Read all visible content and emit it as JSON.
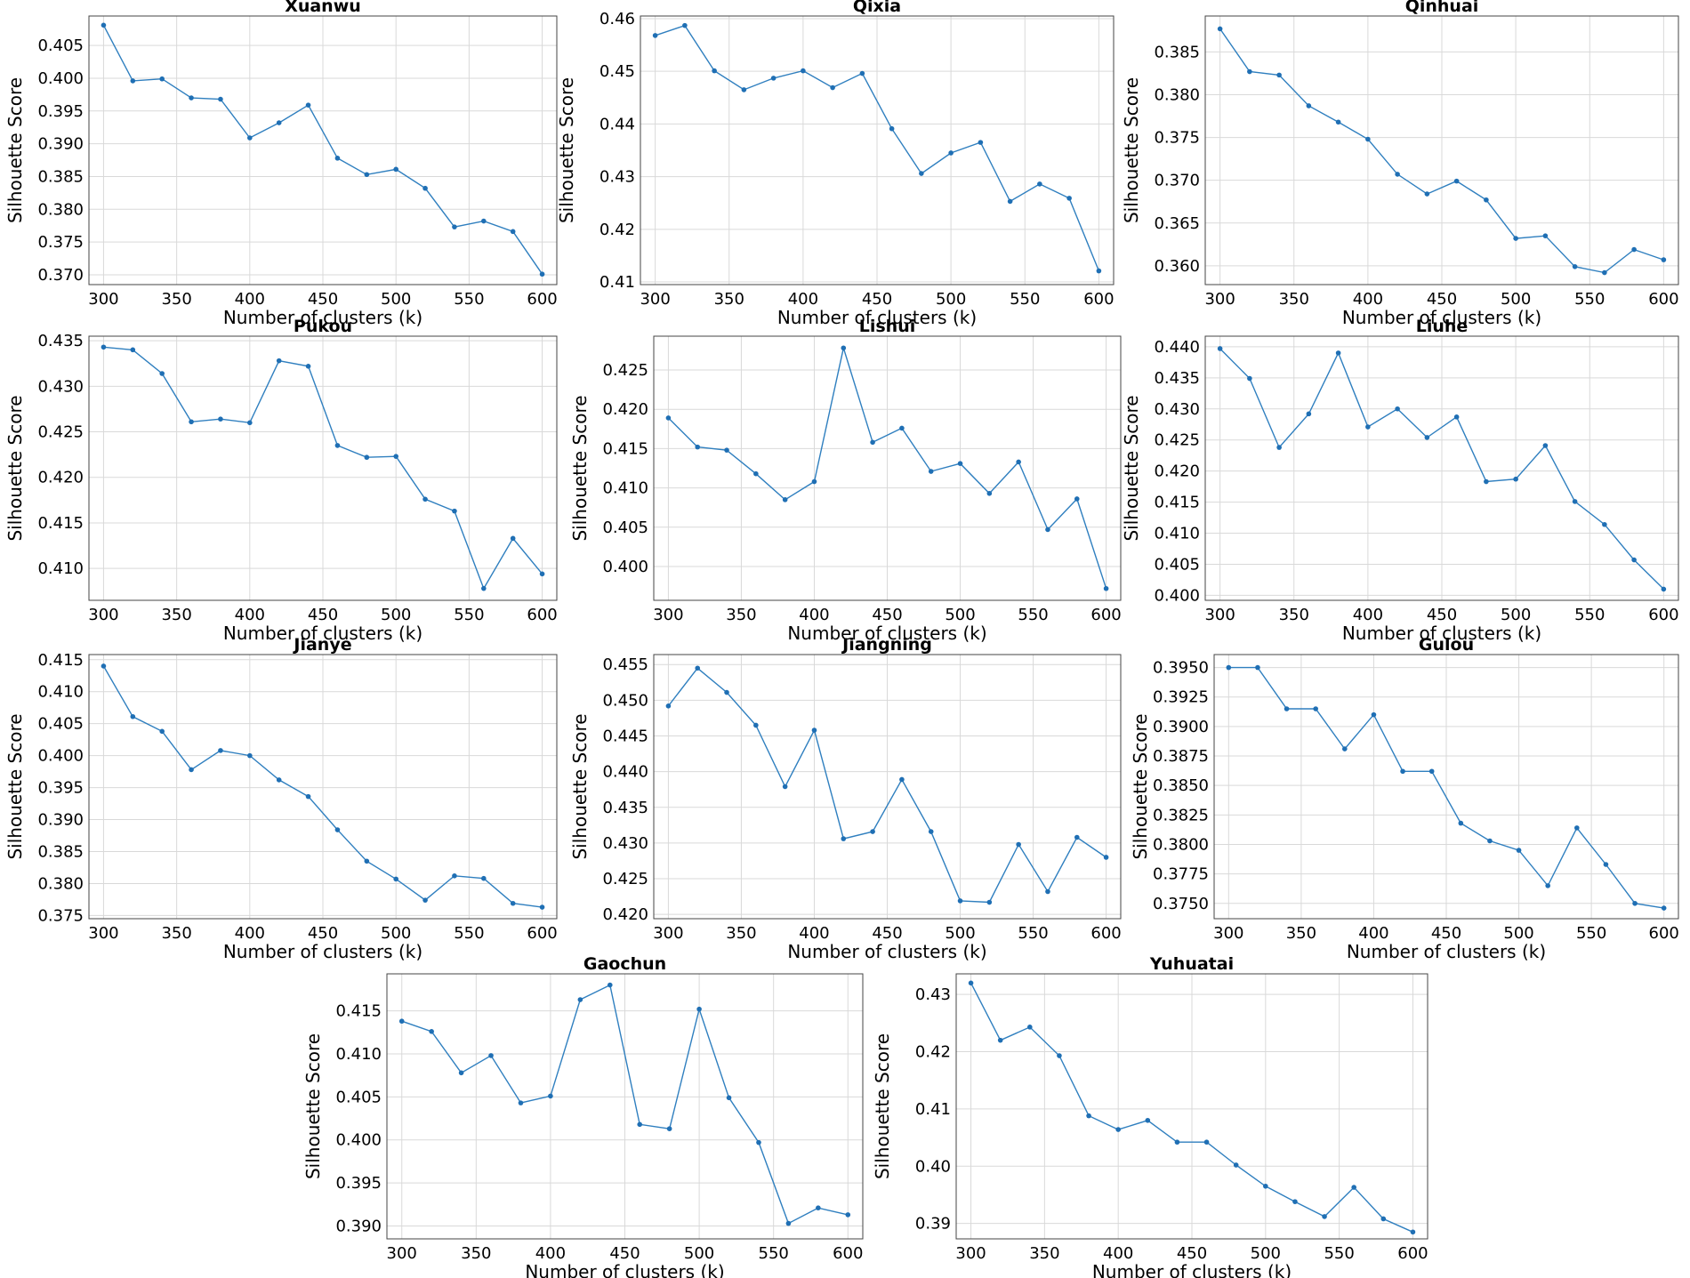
{
  "chart_data": [
    {
      "type": "line",
      "title": "Xuanwu",
      "xlabel": "Number of clusters (k)",
      "ylabel": "Silhouette Score",
      "x": [
        300,
        320,
        340,
        360,
        380,
        400,
        420,
        440,
        460,
        480,
        500,
        520,
        540,
        560,
        580,
        600
      ],
      "series": [
        {
          "values": [
            0.4081,
            0.3996,
            0.3999,
            0.397,
            0.3968,
            0.3909,
            0.3932,
            0.3959,
            0.3878,
            0.3853,
            0.3861,
            0.3832,
            0.3773,
            0.3782,
            0.3766,
            0.3701
          ]
        }
      ],
      "xticks": [
        300,
        350,
        400,
        450,
        500,
        550,
        600
      ],
      "yticks": [
        0.37,
        0.375,
        0.38,
        0.385,
        0.39,
        0.395,
        0.4,
        0.405
      ],
      "ytick_decimals": 3,
      "xlim": [
        290,
        610
      ],
      "ylim": [
        0.3685,
        0.4095
      ],
      "grid": true
    },
    {
      "type": "line",
      "title": "Qixia",
      "xlabel": "Number of clusters (k)",
      "ylabel": "Silhouette Score",
      "x": [
        300,
        320,
        340,
        360,
        380,
        400,
        420,
        440,
        460,
        480,
        500,
        520,
        540,
        560,
        580,
        600
      ],
      "series": [
        {
          "values": [
            0.4568,
            0.4587,
            0.4501,
            0.4465,
            0.4487,
            0.4501,
            0.4469,
            0.4496,
            0.4391,
            0.4306,
            0.4345,
            0.4365,
            0.4253,
            0.4286,
            0.4259,
            0.4121
          ]
        }
      ],
      "xticks": [
        300,
        350,
        400,
        450,
        500,
        550,
        600
      ],
      "yticks": [
        0.41,
        0.42,
        0.43,
        0.44,
        0.45,
        0.46
      ],
      "ytick_decimals": 2,
      "xlim": [
        290,
        610
      ],
      "ylim": [
        0.4095,
        0.4605
      ],
      "grid": true
    },
    {
      "type": "line",
      "title": "Qinhuai",
      "xlabel": "Number of clusters (k)",
      "ylabel": "Silhouette Score",
      "x": [
        300,
        320,
        340,
        360,
        380,
        400,
        420,
        440,
        460,
        480,
        500,
        520,
        540,
        560,
        580,
        600
      ],
      "series": [
        {
          "values": [
            0.3877,
            0.3827,
            0.3823,
            0.3787,
            0.3768,
            0.3748,
            0.3707,
            0.3684,
            0.3699,
            0.3677,
            0.3632,
            0.3635,
            0.3599,
            0.3592,
            0.3619,
            0.3607
          ]
        }
      ],
      "xticks": [
        300,
        350,
        400,
        450,
        500,
        550,
        600
      ],
      "yticks": [
        0.36,
        0.365,
        0.37,
        0.375,
        0.38,
        0.385
      ],
      "ytick_decimals": 3,
      "xlim": [
        290,
        610
      ],
      "ylim": [
        0.3578,
        0.3892
      ],
      "grid": true
    },
    {
      "type": "line",
      "title": "Pukou",
      "xlabel": "Number of clusters (k)",
      "ylabel": "Silhouette Score",
      "x": [
        300,
        320,
        340,
        360,
        380,
        400,
        420,
        440,
        460,
        480,
        500,
        520,
        540,
        560,
        580,
        600
      ],
      "series": [
        {
          "values": [
            0.4343,
            0.434,
            0.4314,
            0.4261,
            0.4264,
            0.426,
            0.4328,
            0.4322,
            0.4235,
            0.4222,
            0.4223,
            0.4176,
            0.4163,
            0.4078,
            0.4133,
            0.4094
          ]
        }
      ],
      "xticks": [
        300,
        350,
        400,
        450,
        500,
        550,
        600
      ],
      "yticks": [
        0.41,
        0.415,
        0.42,
        0.425,
        0.43,
        0.435
      ],
      "ytick_decimals": 3,
      "xlim": [
        290,
        610
      ],
      "ylim": [
        0.4065,
        0.4355
      ],
      "grid": true
    },
    {
      "type": "line",
      "title": "Lishui",
      "xlabel": "Number of clusters (k)",
      "ylabel": "Silhouette Score",
      "x": [
        300,
        320,
        340,
        360,
        380,
        400,
        420,
        440,
        460,
        480,
        500,
        520,
        540,
        560,
        580,
        600
      ],
      "series": [
        {
          "values": [
            0.4189,
            0.4152,
            0.4148,
            0.4118,
            0.4085,
            0.4108,
            0.4278,
            0.4158,
            0.4176,
            0.4121,
            0.4131,
            0.4093,
            0.4133,
            0.4047,
            0.4086,
            0.3972
          ]
        }
      ],
      "xticks": [
        300,
        350,
        400,
        450,
        500,
        550,
        600
      ],
      "yticks": [
        0.4,
        0.405,
        0.41,
        0.415,
        0.42,
        0.425
      ],
      "ytick_decimals": 3,
      "xlim": [
        290,
        610
      ],
      "ylim": [
        0.3957,
        0.4293
      ],
      "grid": true
    },
    {
      "type": "line",
      "title": "Liuhe",
      "xlabel": "Number of clusters (k)",
      "ylabel": "Silhouette Score",
      "x": [
        300,
        320,
        340,
        360,
        380,
        400,
        420,
        440,
        460,
        480,
        500,
        520,
        540,
        560,
        580,
        600
      ],
      "series": [
        {
          "values": [
            0.4397,
            0.4349,
            0.4238,
            0.4292,
            0.439,
            0.4271,
            0.43,
            0.4254,
            0.4287,
            0.4183,
            0.4187,
            0.4241,
            0.4151,
            0.4114,
            0.4057,
            0.401
          ]
        }
      ],
      "xticks": [
        300,
        350,
        400,
        450,
        500,
        550,
        600
      ],
      "yticks": [
        0.4,
        0.405,
        0.41,
        0.415,
        0.42,
        0.425,
        0.43,
        0.435,
        0.44
      ],
      "ytick_decimals": 3,
      "xlim": [
        290,
        610
      ],
      "ylim": [
        0.3992,
        0.4417
      ],
      "grid": true
    },
    {
      "type": "line",
      "title": "Jianye",
      "xlabel": "Number of clusters (k)",
      "ylabel": "Silhouette Score",
      "x": [
        300,
        320,
        340,
        360,
        380,
        400,
        420,
        440,
        460,
        480,
        500,
        520,
        540,
        560,
        580,
        600
      ],
      "series": [
        {
          "values": [
            0.414,
            0.4061,
            0.4038,
            0.3978,
            0.4008,
            0.4,
            0.3962,
            0.3936,
            0.3884,
            0.3835,
            0.3807,
            0.3774,
            0.3812,
            0.3808,
            0.3769,
            0.3763
          ]
        }
      ],
      "xticks": [
        300,
        350,
        400,
        450,
        500,
        550,
        600
      ],
      "yticks": [
        0.375,
        0.38,
        0.385,
        0.39,
        0.395,
        0.4,
        0.405,
        0.41,
        0.415
      ],
      "ytick_decimals": 3,
      "xlim": [
        290,
        610
      ],
      "ylim": [
        0.3745,
        0.4158
      ],
      "grid": true
    },
    {
      "type": "line",
      "title": "Jiangning",
      "xlabel": "Number of clusters (k)",
      "ylabel": "Silhouette Score",
      "x": [
        300,
        320,
        340,
        360,
        380,
        400,
        420,
        440,
        460,
        480,
        500,
        520,
        540,
        560,
        580,
        600
      ],
      "series": [
        {
          "values": [
            0.4492,
            0.4545,
            0.4511,
            0.4465,
            0.4379,
            0.4458,
            0.4306,
            0.4316,
            0.4389,
            0.4316,
            0.4219,
            0.4217,
            0.4298,
            0.4232,
            0.4308,
            0.428
          ]
        }
      ],
      "xticks": [
        300,
        350,
        400,
        450,
        500,
        550,
        600
      ],
      "yticks": [
        0.42,
        0.425,
        0.43,
        0.435,
        0.44,
        0.445,
        0.45,
        0.455
      ],
      "ytick_decimals": 3,
      "xlim": [
        290,
        610
      ],
      "ylim": [
        0.4194,
        0.4564
      ],
      "grid": true
    },
    {
      "type": "line",
      "title": "Gulou",
      "xlabel": "Number of clusters (k)",
      "ylabel": "Silhouette Score",
      "x": [
        300,
        320,
        340,
        360,
        380,
        400,
        420,
        440,
        460,
        480,
        500,
        520,
        540,
        560,
        580,
        600
      ],
      "series": [
        {
          "values": [
            0.395,
            0.395,
            0.3915,
            0.3915,
            0.3881,
            0.391,
            0.3862,
            0.3862,
            0.3818,
            0.3803,
            0.3795,
            0.3765,
            0.3814,
            0.3783,
            0.375,
            0.3746
          ]
        }
      ],
      "xticks": [
        300,
        350,
        400,
        450,
        500,
        550,
        600
      ],
      "yticks": [
        0.375,
        0.3775,
        0.38,
        0.3825,
        0.385,
        0.3875,
        0.39,
        0.3925,
        0.395
      ],
      "ytick_decimals": 4,
      "xlim": [
        290,
        610
      ],
      "ylim": [
        0.3737,
        0.3961
      ],
      "grid": true
    },
    {
      "type": "line",
      "title": "Gaochun",
      "xlabel": "Number of clusters (k)",
      "ylabel": "Silhouette Score",
      "x": [
        300,
        320,
        340,
        360,
        380,
        400,
        420,
        440,
        460,
        480,
        500,
        520,
        540,
        560,
        580,
        600
      ],
      "series": [
        {
          "values": [
            0.4138,
            0.4126,
            0.4078,
            0.4098,
            0.4043,
            0.4051,
            0.4163,
            0.418,
            0.4018,
            0.4013,
            0.4152,
            0.4049,
            0.3997,
            0.3903,
            0.3921,
            0.3913
          ]
        }
      ],
      "xticks": [
        300,
        350,
        400,
        450,
        500,
        550,
        600
      ],
      "yticks": [
        0.39,
        0.395,
        0.4,
        0.405,
        0.41,
        0.415
      ],
      "ytick_decimals": 3,
      "xlim": [
        290,
        610
      ],
      "ylim": [
        0.3885,
        0.4193
      ],
      "grid": true
    },
    {
      "type": "line",
      "title": "Yuhuatai",
      "xlabel": "Number of clusters (k)",
      "ylabel": "Silhouette Score",
      "x": [
        300,
        320,
        340,
        360,
        380,
        400,
        420,
        440,
        460,
        480,
        500,
        520,
        540,
        560,
        580,
        600
      ],
      "series": [
        {
          "values": [
            0.432,
            0.422,
            0.4243,
            0.4193,
            0.4088,
            0.4064,
            0.408,
            0.4042,
            0.4042,
            0.4002,
            0.3965,
            0.3938,
            0.3912,
            0.3963,
            0.3908,
            0.3885
          ]
        }
      ],
      "xticks": [
        300,
        350,
        400,
        450,
        500,
        550,
        600
      ],
      "yticks": [
        0.39,
        0.4,
        0.41,
        0.42,
        0.43
      ],
      "ytick_decimals": 2,
      "xlim": [
        290,
        610
      ],
      "ylim": [
        0.3873,
        0.4336
      ],
      "grid": true
    }
  ]
}
